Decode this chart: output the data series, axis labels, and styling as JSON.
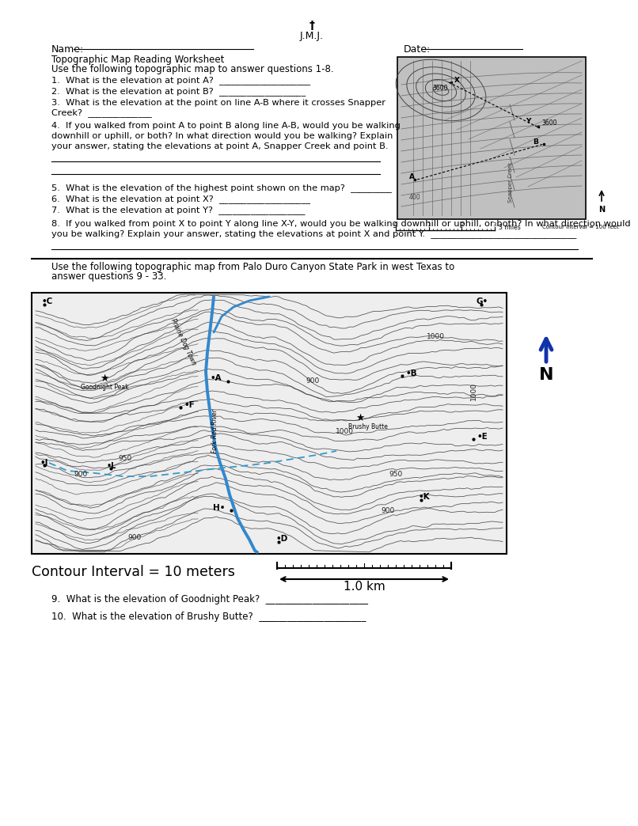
{
  "title_cross": "†",
  "title_jmj": "J.M.J.",
  "name_label": "Name:",
  "date_label": "Date:",
  "worksheet_title": "Topographic Map Reading Worksheet",
  "worksheet_subtitle": "Use the following topographic map to answer questions 1-8.",
  "section2_intro_line1": "Use the following topographic map from Palo Duro Canyon State Park in west Texas to",
  "section2_intro_line2": "answer questions 9 - 33.",
  "contour_interval_label": "Contour Interval = 10 meters",
  "scale_label": "1.0 km",
  "q1": "1.  What is the elevation at point A?  ____________________",
  "q2": "2.  What is the elevation at point B?  ___________________",
  "q3a": "3.  What is the elevation at the point on line A-B where it crosses Snapper",
  "q3b": "Creek?  ______________",
  "q4a": "4.  If you walked from point A to point B along line A-B, would you be walking",
  "q4b": "downhill or uphill, or both? In what direction would you be walking? Explain",
  "q4c": "your answer, stating the elevations at point A, Snapper Creek and point B.",
  "q5": "5.  What is the elevation of the highest point shown on the map?  _________",
  "q6": "6.  What is the elevation at point X?  ____________________",
  "q7": "7.  What is the elevation at point Y?  ___________________",
  "q8a": "8.  If you walked from point X to point Y along line X-Y, would you be walking downhill or uphill, or both? In what direction would",
  "q8b": "you be walking? Explain your answer, stating the elevations at point X and point Y.  ________________________________",
  "q9": "9.  What is the elevation of Goodnight Peak?  ______________________",
  "q10": "10.  What is the elevation of Brushy Butte?  _______________________",
  "bg_color": "#ffffff",
  "map1_bg": "#c8c8c8",
  "map2_bg": "#f2f2f2"
}
